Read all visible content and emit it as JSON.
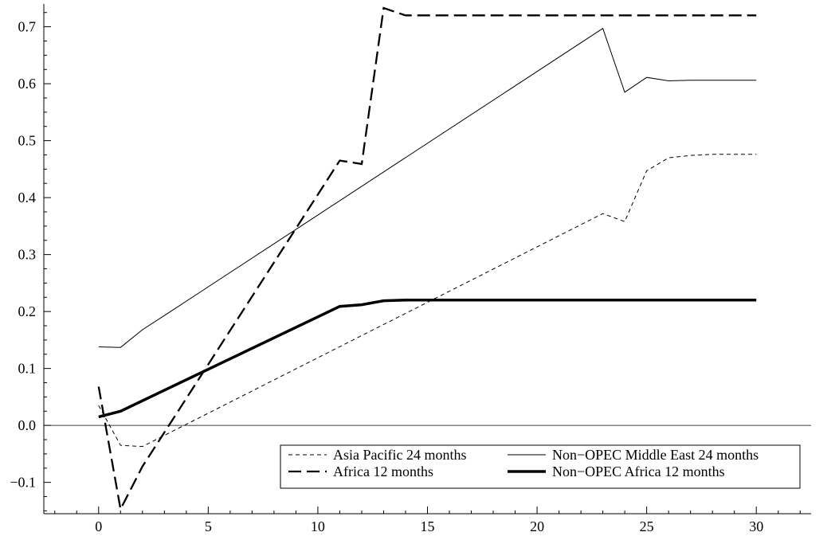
{
  "chart_data": {
    "type": "line",
    "title": "",
    "xlabel": "",
    "ylabel": "",
    "xlim": [
      -2.5,
      32.5
    ],
    "ylim": [
      -0.155,
      0.74
    ],
    "xticks": [
      0,
      5,
      10,
      15,
      20,
      25,
      30
    ],
    "xtick_labels": [
      "0",
      "5",
      "10",
      "15",
      "20",
      "25",
      "30"
    ],
    "yticks": [
      -0.1,
      0.0,
      0.1,
      0.2,
      0.3,
      0.4,
      0.5,
      0.6,
      0.7
    ],
    "ytick_labels": [
      "−0.1",
      "0.0",
      "0.1",
      "0.2",
      "0.3",
      "0.4",
      "0.5",
      "0.6",
      "0.7"
    ],
    "grid": false,
    "zero_line": true,
    "legend_position": "bottom-right",
    "series": [
      {
        "name": "Asia Pacific 24 months",
        "style": "short-dash",
        "x": [
          0,
          1,
          2,
          23,
          24,
          25,
          26,
          27,
          28,
          29,
          30
        ],
        "y": [
          0.035,
          -0.035,
          -0.037,
          0.372,
          0.358,
          0.447,
          0.47,
          0.474,
          0.476,
          0.476,
          0.476
        ]
      },
      {
        "name": "Non−OPEC Middle East 24 months",
        "style": "thin-solid",
        "x": [
          0,
          1,
          2,
          3,
          23,
          24,
          25,
          26,
          27,
          28,
          29,
          30
        ],
        "y": [
          0.138,
          0.137,
          0.168,
          0.193,
          0.697,
          0.585,
          0.611,
          0.605,
          0.606,
          0.606,
          0.606,
          0.606
        ]
      },
      {
        "name": "Africa 12 months",
        "style": "long-dash",
        "x": [
          0,
          1,
          2,
          11,
          12,
          13,
          14,
          15,
          20,
          25,
          30
        ],
        "y": [
          0.068,
          -0.147,
          -0.072,
          0.465,
          0.459,
          0.733,
          0.72,
          0.72,
          0.72,
          0.72,
          0.72
        ]
      },
      {
        "name": "Non−OPEC Africa 12 months",
        "style": "thick-solid",
        "x": [
          0,
          1,
          11,
          12,
          13,
          14,
          15,
          20,
          25,
          30
        ],
        "y": [
          0.015,
          0.025,
          0.209,
          0.212,
          0.219,
          0.22,
          0.22,
          0.22,
          0.22,
          0.22
        ]
      }
    ]
  }
}
